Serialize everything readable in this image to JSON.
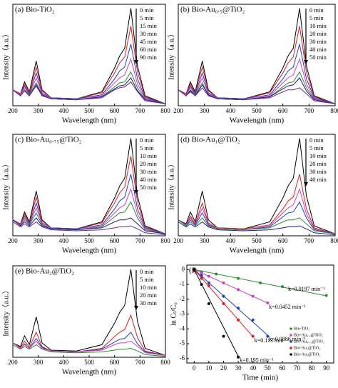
{
  "chart_data": [
    {
      "type": "line",
      "title": "(a) Bio-TiO₂",
      "x_label": "Wavelength (nm)",
      "y_label": "Intensity（a.u.）",
      "x": [
        200,
        230,
        246,
        265,
        292,
        315,
        350,
        450,
        550,
        600,
        620,
        640,
        664,
        690,
        720,
        800
      ],
      "xlim": [
        200,
        800
      ],
      "xticks": [
        200,
        300,
        400,
        500,
        600,
        700,
        800
      ],
      "ylim": [
        0,
        1.02
      ],
      "series": [
        {
          "name": "0 min",
          "color": "#000000",
          "values": [
            0.16,
            0.12,
            0.24,
            0.14,
            0.45,
            0.16,
            0.08,
            0.07,
            0.14,
            0.38,
            0.5,
            0.58,
            0.98,
            0.4,
            0.1,
            0.02
          ]
        },
        {
          "name": "5 min",
          "color": "#e41a1c",
          "values": [
            0.16,
            0.12,
            0.22,
            0.13,
            0.39,
            0.15,
            0.08,
            0.07,
            0.13,
            0.33,
            0.43,
            0.49,
            0.8,
            0.34,
            0.09,
            0.02
          ]
        },
        {
          "name": "15 min",
          "color": "#1f3fbf",
          "values": [
            0.16,
            0.11,
            0.2,
            0.12,
            0.33,
            0.13,
            0.08,
            0.07,
            0.11,
            0.27,
            0.35,
            0.39,
            0.62,
            0.27,
            0.08,
            0.02
          ]
        },
        {
          "name": "30 min",
          "color": "#d040c0",
          "values": [
            0.16,
            0.11,
            0.18,
            0.11,
            0.28,
            0.12,
            0.07,
            0.06,
            0.1,
            0.23,
            0.28,
            0.31,
            0.47,
            0.22,
            0.07,
            0.02
          ]
        },
        {
          "name": "45 min",
          "color": "#2e8b2e",
          "values": [
            0.16,
            0.1,
            0.16,
            0.11,
            0.23,
            0.11,
            0.07,
            0.06,
            0.09,
            0.19,
            0.23,
            0.24,
            0.34,
            0.18,
            0.06,
            0.02
          ]
        },
        {
          "name": "60 min",
          "color": "#1a1a8c",
          "values": [
            0.16,
            0.1,
            0.15,
            0.1,
            0.21,
            0.11,
            0.07,
            0.06,
            0.09,
            0.17,
            0.2,
            0.21,
            0.28,
            0.15,
            0.06,
            0.02
          ]
        },
        {
          "name": "90 min",
          "color": "#6a2a8a",
          "values": [
            0.16,
            0.1,
            0.15,
            0.1,
            0.2,
            0.1,
            0.07,
            0.06,
            0.08,
            0.16,
            0.18,
            0.19,
            0.24,
            0.14,
            0.05,
            0.02
          ]
        }
      ]
    },
    {
      "type": "line",
      "title": "(b) Bio-Au₀.₅@TiO₂",
      "x_label": "Wavelength (nm)",
      "y_label": "Intensity（a.u.）",
      "x": [
        200,
        230,
        246,
        265,
        292,
        315,
        350,
        450,
        550,
        600,
        620,
        640,
        664,
        690,
        720,
        800
      ],
      "xlim": [
        200,
        800
      ],
      "xticks": [
        200,
        300,
        400,
        500,
        600,
        700,
        800
      ],
      "ylim": [
        0,
        1.02
      ],
      "series": [
        {
          "name": "0 min",
          "color": "#000000",
          "values": [
            0.16,
            0.12,
            0.24,
            0.14,
            0.45,
            0.16,
            0.08,
            0.07,
            0.14,
            0.38,
            0.5,
            0.58,
            0.98,
            0.4,
            0.1,
            0.02
          ]
        },
        {
          "name": "5 min",
          "color": "#e41a1c",
          "values": [
            0.16,
            0.12,
            0.22,
            0.13,
            0.39,
            0.15,
            0.08,
            0.07,
            0.13,
            0.33,
            0.43,
            0.49,
            0.8,
            0.34,
            0.09,
            0.02
          ]
        },
        {
          "name": "10 min",
          "color": "#1f3fbf",
          "values": [
            0.16,
            0.11,
            0.2,
            0.12,
            0.33,
            0.13,
            0.08,
            0.07,
            0.11,
            0.27,
            0.35,
            0.39,
            0.62,
            0.27,
            0.08,
            0.02
          ]
        },
        {
          "name": "20 min",
          "color": "#d040c0",
          "values": [
            0.16,
            0.11,
            0.18,
            0.11,
            0.28,
            0.12,
            0.07,
            0.06,
            0.1,
            0.23,
            0.28,
            0.31,
            0.47,
            0.22,
            0.07,
            0.02
          ]
        },
        {
          "name": "30 min",
          "color": "#2e8b2e",
          "values": [
            0.16,
            0.1,
            0.16,
            0.11,
            0.23,
            0.11,
            0.07,
            0.06,
            0.09,
            0.19,
            0.23,
            0.24,
            0.34,
            0.18,
            0.06,
            0.02
          ]
        },
        {
          "name": "40 min",
          "color": "#1a1a8c",
          "values": [
            0.16,
            0.1,
            0.15,
            0.1,
            0.21,
            0.11,
            0.07,
            0.06,
            0.09,
            0.17,
            0.2,
            0.21,
            0.28,
            0.15,
            0.06,
            0.02
          ]
        },
        {
          "name": "50 min",
          "color": "#6a2a8a",
          "values": [
            0.16,
            0.1,
            0.14,
            0.1,
            0.18,
            0.1,
            0.07,
            0.06,
            0.08,
            0.14,
            0.16,
            0.16,
            0.18,
            0.12,
            0.05,
            0.02
          ]
        }
      ]
    },
    {
      "type": "line",
      "title": "(c) Bio-Au₀.₇₅@TiO₂",
      "x_label": "Wavelength (nm)",
      "y_label": "Intensity（a.u.）",
      "x": [
        200,
        230,
        246,
        265,
        292,
        315,
        350,
        450,
        550,
        600,
        620,
        640,
        664,
        690,
        720,
        800
      ],
      "xlim": [
        200,
        800
      ],
      "xticks": [
        200,
        300,
        400,
        500,
        600,
        700,
        800
      ],
      "ylim": [
        0,
        1.02
      ],
      "series": [
        {
          "name": "0 min",
          "color": "#000000",
          "values": [
            0.16,
            0.12,
            0.24,
            0.14,
            0.45,
            0.16,
            0.08,
            0.07,
            0.14,
            0.38,
            0.5,
            0.58,
            0.98,
            0.4,
            0.1,
            0.02
          ]
        },
        {
          "name": "5 min",
          "color": "#e41a1c",
          "values": [
            0.16,
            0.12,
            0.22,
            0.13,
            0.39,
            0.15,
            0.08,
            0.07,
            0.13,
            0.33,
            0.43,
            0.49,
            0.8,
            0.34,
            0.09,
            0.02
          ]
        },
        {
          "name": "10 min",
          "color": "#1f3fbf",
          "values": [
            0.16,
            0.11,
            0.2,
            0.12,
            0.33,
            0.13,
            0.08,
            0.07,
            0.11,
            0.27,
            0.35,
            0.39,
            0.62,
            0.27,
            0.08,
            0.02
          ]
        },
        {
          "name": "20 min",
          "color": "#d040c0",
          "values": [
            0.16,
            0.11,
            0.18,
            0.11,
            0.28,
            0.12,
            0.07,
            0.06,
            0.1,
            0.23,
            0.28,
            0.31,
            0.47,
            0.22,
            0.07,
            0.02
          ]
        },
        {
          "name": "30 min",
          "color": "#2e8b2e",
          "values": [
            0.16,
            0.1,
            0.16,
            0.11,
            0.23,
            0.11,
            0.07,
            0.06,
            0.09,
            0.19,
            0.23,
            0.24,
            0.34,
            0.18,
            0.06,
            0.02
          ]
        },
        {
          "name": "40 min",
          "color": "#1a1a8c",
          "values": [
            0.16,
            0.1,
            0.14,
            0.1,
            0.18,
            0.1,
            0.07,
            0.06,
            0.08,
            0.14,
            0.16,
            0.16,
            0.18,
            0.12,
            0.05,
            0.02
          ]
        },
        {
          "name": "50 min",
          "color": "#6a2a8a",
          "values": [
            0.14,
            0.09,
            0.12,
            0.09,
            0.14,
            0.09,
            0.06,
            0.05,
            0.06,
            0.08,
            0.09,
            0.09,
            0.1,
            0.07,
            0.03,
            0.01
          ]
        }
      ]
    },
    {
      "type": "line",
      "title": "(d) Bio-Au₁@TiO₂",
      "x_label": "Wavelength (nm)",
      "y_label": "Intensity（a.u.）",
      "x": [
        200,
        230,
        246,
        265,
        292,
        315,
        350,
        450,
        550,
        600,
        620,
        640,
        664,
        690,
        720,
        800
      ],
      "xlim": [
        200,
        800
      ],
      "xticks": [
        200,
        300,
        400,
        500,
        600,
        700,
        800
      ],
      "ylim": [
        0,
        1.02
      ],
      "series": [
        {
          "name": "0 min",
          "color": "#000000",
          "values": [
            0.16,
            0.12,
            0.24,
            0.14,
            0.45,
            0.16,
            0.08,
            0.07,
            0.14,
            0.38,
            0.5,
            0.58,
            0.98,
            0.4,
            0.1,
            0.02
          ]
        },
        {
          "name": "5 min",
          "color": "#e41a1c",
          "values": [
            0.16,
            0.11,
            0.2,
            0.12,
            0.33,
            0.13,
            0.08,
            0.07,
            0.11,
            0.27,
            0.35,
            0.39,
            0.62,
            0.27,
            0.08,
            0.02
          ]
        },
        {
          "name": "10 min",
          "color": "#d040c0",
          "values": [
            0.16,
            0.11,
            0.18,
            0.11,
            0.28,
            0.12,
            0.07,
            0.06,
            0.1,
            0.23,
            0.28,
            0.31,
            0.47,
            0.22,
            0.07,
            0.02
          ]
        },
        {
          "name": "20 min",
          "color": "#1f3fbf",
          "values": [
            0.16,
            0.1,
            0.16,
            0.11,
            0.23,
            0.11,
            0.07,
            0.06,
            0.09,
            0.19,
            0.23,
            0.24,
            0.34,
            0.18,
            0.06,
            0.02
          ]
        },
        {
          "name": "30 min",
          "color": "#2e8b2e",
          "values": [
            0.16,
            0.1,
            0.14,
            0.1,
            0.18,
            0.1,
            0.07,
            0.06,
            0.08,
            0.14,
            0.16,
            0.16,
            0.18,
            0.12,
            0.05,
            0.02
          ]
        },
        {
          "name": "40 min",
          "color": "#1a1a8c",
          "values": [
            0.14,
            0.09,
            0.12,
            0.09,
            0.14,
            0.09,
            0.06,
            0.05,
            0.06,
            0.08,
            0.09,
            0.09,
            0.1,
            0.07,
            0.03,
            0.01
          ]
        }
      ]
    },
    {
      "type": "line",
      "title": "(e) Bio-Au₂@TiO₂",
      "x_label": "Wavelength (nm)",
      "y_label": "Intensity（a.u.）",
      "x": [
        200,
        230,
        246,
        265,
        292,
        315,
        350,
        450,
        550,
        600,
        620,
        640,
        664,
        690,
        720,
        800
      ],
      "xlim": [
        200,
        800
      ],
      "xticks": [
        200,
        300,
        400,
        500,
        600,
        700,
        800
      ],
      "ylim": [
        0,
        1.02
      ],
      "series": [
        {
          "name": "0 min",
          "color": "#000000",
          "values": [
            0.16,
            0.12,
            0.24,
            0.14,
            0.45,
            0.16,
            0.08,
            0.07,
            0.14,
            0.38,
            0.5,
            0.58,
            0.98,
            0.4,
            0.1,
            0.02
          ]
        },
        {
          "name": "5 min",
          "color": "#e41a1c",
          "values": [
            0.16,
            0.11,
            0.18,
            0.11,
            0.28,
            0.12,
            0.07,
            0.06,
            0.1,
            0.23,
            0.28,
            0.31,
            0.47,
            0.22,
            0.07,
            0.02
          ]
        },
        {
          "name": "10 min",
          "color": "#1f3fbf",
          "values": [
            0.16,
            0.1,
            0.15,
            0.1,
            0.21,
            0.11,
            0.07,
            0.06,
            0.09,
            0.17,
            0.2,
            0.21,
            0.28,
            0.15,
            0.06,
            0.02
          ]
        },
        {
          "name": "20 min",
          "color": "#d040c0",
          "values": [
            0.16,
            0.1,
            0.14,
            0.1,
            0.18,
            0.1,
            0.07,
            0.06,
            0.08,
            0.14,
            0.16,
            0.16,
            0.18,
            0.12,
            0.05,
            0.02
          ]
        },
        {
          "name": "30 min",
          "color": "#2e8b2e",
          "values": [
            0.14,
            0.09,
            0.12,
            0.09,
            0.14,
            0.09,
            0.06,
            0.05,
            0.06,
            0.08,
            0.09,
            0.09,
            0.1,
            0.07,
            0.03,
            0.01
          ]
        }
      ]
    },
    {
      "type": "scatter",
      "title": "(f)",
      "x_label": "Time (min)",
      "y_label": "ln Cₜ/C₀",
      "xlim": [
        -5,
        95
      ],
      "xticks": [
        0,
        10,
        20,
        30,
        40,
        50,
        60,
        70,
        80,
        90
      ],
      "ylim": [
        -6.3,
        0.3
      ],
      "yticks": [
        0,
        -1,
        -2,
        -3,
        -4,
        -5,
        -6
      ],
      "series": [
        {
          "name": "Bio-TiO₂",
          "color": "#2e8b2e",
          "x": [
            0,
            5,
            15,
            30,
            45,
            60,
            90
          ],
          "values": [
            0,
            -0.15,
            -0.3,
            -0.6,
            -0.9,
            -1.15,
            -1.75
          ],
          "k": 0.0197,
          "k_label": "k=0.0197 min⁻¹"
        },
        {
          "name": "Bio-Au₀.₅@TiO₂",
          "color": "#d040c0",
          "x": [
            0,
            5,
            10,
            20,
            30,
            40,
            50
          ],
          "values": [
            0,
            -0.25,
            -0.45,
            -0.9,
            -1.35,
            -1.8,
            -2.25
          ],
          "k": 0.0452,
          "k_label": "k=0.0452 min⁻¹"
        },
        {
          "name": "Bio-Au₀.₇₅@TiO₂",
          "color": "#1f3fbf",
          "x": [
            0,
            5,
            10,
            20,
            30,
            40,
            50
          ],
          "values": [
            0,
            -0.4,
            -0.9,
            -1.8,
            -2.6,
            -3.4,
            -4.5
          ],
          "k": 0.0886,
          "k_label": "k=0.0886 min⁻¹"
        },
        {
          "name": "Bio-Au₁@TiO₂",
          "color": "#e41a1c",
          "x": [
            0,
            5,
            10,
            20,
            30,
            40
          ],
          "values": [
            -0.1,
            -0.6,
            -1.1,
            -2.3,
            -3.4,
            -4.5
          ],
          "k": 0.113,
          "k_label": "k=0.113 min⁻¹"
        },
        {
          "name": "Bio-Au₂@TiO₂",
          "color": "#000000",
          "x": [
            0,
            5,
            10,
            20,
            30
          ],
          "values": [
            0,
            -1.0,
            -2.3,
            -4.5,
            -5.9
          ],
          "k": 0.195,
          "k_label": "k=0.195 min⁻¹"
        }
      ]
    }
  ]
}
